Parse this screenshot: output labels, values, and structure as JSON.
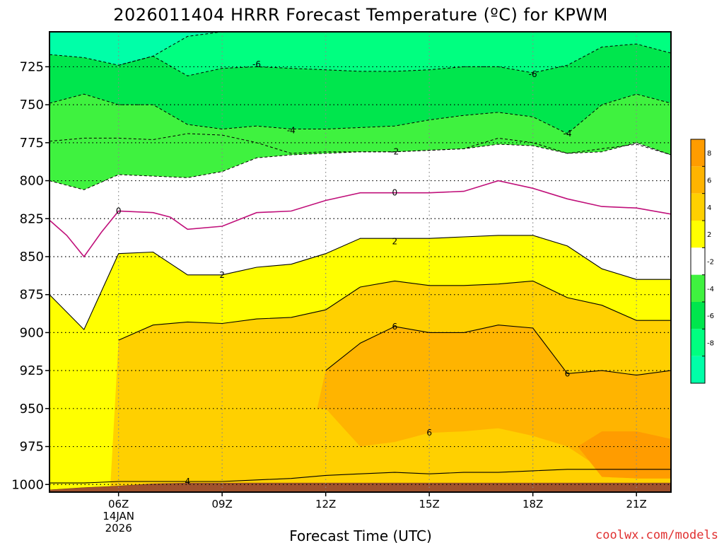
{
  "chart_data": {
    "type": "heatmap",
    "title": "2026011404 HRRR Forecast Temperature (ºC) for KPWM",
    "xlabel": "Forecast Time (UTC)",
    "ylabel": "",
    "credit": "coolwx.com/models",
    "x_hours_utc": [
      4,
      5,
      6,
      7,
      8,
      9,
      10,
      11,
      12,
      13,
      14,
      15,
      16,
      17,
      18,
      19,
      20,
      21,
      22
    ],
    "xlim": [
      4,
      22
    ],
    "xticks": [
      {
        "x": 6,
        "lines": [
          "06Z",
          "14JAN",
          "2026"
        ]
      },
      {
        "x": 9,
        "lines": [
          "09Z"
        ]
      },
      {
        "x": 12,
        "lines": [
          "12Z"
        ]
      },
      {
        "x": 15,
        "lines": [
          "15Z"
        ]
      },
      {
        "x": 18,
        "lines": [
          "18Z"
        ]
      },
      {
        "x": 21,
        "lines": [
          "21Z"
        ]
      }
    ],
    "ylim": [
      1005,
      702
    ],
    "yticks": [
      725,
      750,
      775,
      800,
      825,
      850,
      875,
      900,
      925,
      950,
      975,
      1000
    ],
    "ground_pressure_hpa": [
      1003.5,
      1002,
      1001,
      999.5,
      999,
      999,
      999,
      999,
      999,
      999,
      999,
      999,
      999,
      999,
      999,
      999,
      999,
      999,
      999
    ],
    "colorbar": {
      "ticks": [
        8,
        6,
        4,
        2,
        -2,
        -4,
        -6,
        -8
      ],
      "bins": [
        {
          "range": [
            8,
            10
          ],
          "color": "#ff9c00"
        },
        {
          "range": [
            6,
            8
          ],
          "color": "#ffb400"
        },
        {
          "range": [
            4,
            6
          ],
          "color": "#ffd000"
        },
        {
          "range": [
            2,
            4
          ],
          "color": "#ffff00"
        },
        {
          "range": [
            -2,
            2
          ],
          "color": "#ffffff"
        },
        {
          "range": [
            -4,
            -2
          ],
          "color": "#3ff23f"
        },
        {
          "range": [
            -6,
            -4
          ],
          "color": "#00e64d"
        },
        {
          "range": [
            -8,
            -6
          ],
          "color": "#00ff80"
        },
        {
          "range": [
            -10,
            -8
          ],
          "color": "#00ffa8"
        }
      ]
    },
    "contours": [
      {
        "level": -6,
        "label": "-6",
        "style": "dashed",
        "label_points": [
          [
            10,
            723.5
          ],
          [
            18,
            730
          ]
        ],
        "x": [
          4,
          5,
          6,
          7,
          8,
          9,
          10,
          11,
          12,
          13,
          14,
          15,
          16,
          17,
          18,
          19,
          20,
          21,
          22
        ],
        "p": [
          717,
          719,
          724,
          718,
          705,
          702,
          702,
          702,
          702,
          702,
          702,
          702,
          702,
          702,
          702,
          702,
          702,
          702,
          702
        ]
      },
      {
        "level": -6,
        "label": "",
        "style": "dashed",
        "label_points": [],
        "x": [
          6,
          7,
          8,
          9,
          10,
          11,
          12,
          13,
          14,
          15,
          16,
          17,
          18,
          19,
          20,
          21,
          22
        ],
        "p": [
          724,
          718,
          731,
          726,
          725,
          726,
          727,
          728,
          728,
          727,
          725,
          725,
          729,
          724,
          712,
          710,
          716
        ]
      },
      {
        "level": -4,
        "label": "-4",
        "style": "dashed",
        "label_points": [
          [
            11,
            767
          ],
          [
            19,
            769
          ]
        ],
        "x": [
          4,
          5,
          6,
          7,
          8,
          9,
          10,
          11,
          12,
          13,
          14,
          15,
          16,
          17,
          18,
          19,
          20,
          21,
          22
        ],
        "p": [
          749,
          743,
          750,
          750,
          763,
          766,
          764,
          766,
          766,
          765,
          764,
          760,
          757,
          755,
          758,
          769,
          750,
          743,
          749
        ]
      },
      {
        "level": -2,
        "label": "-2",
        "style": "dashed",
        "label_points": [
          [
            14,
            781
          ]
        ],
        "x": [
          4,
          5,
          6,
          7,
          8,
          9,
          10,
          11,
          12,
          13,
          14,
          15,
          16,
          17,
          18,
          19,
          20,
          21,
          22
        ],
        "p": [
          774,
          772,
          772,
          773,
          769,
          770,
          775,
          782,
          781,
          781,
          781,
          780,
          779,
          772,
          775,
          782,
          779,
          776,
          783
        ]
      },
      {
        "level": -2,
        "label": "",
        "style": "dashed",
        "label_points": [],
        "x": [
          4,
          5,
          6,
          7,
          8,
          9,
          10,
          11,
          12,
          13,
          14,
          15,
          16,
          17,
          18,
          19,
          20,
          21,
          22
        ],
        "p": [
          800,
          806,
          796,
          797,
          798,
          794,
          785,
          783,
          782,
          781,
          781,
          780,
          779,
          776,
          777,
          782,
          781,
          775,
          783
        ]
      },
      {
        "level": 0,
        "label": "0",
        "style": "magenta",
        "label_points": [
          [
            6,
            820
          ],
          [
            14,
            808
          ]
        ],
        "x": [
          4,
          4.5,
          5,
          5.5,
          6,
          7,
          7.5,
          8,
          9,
          10,
          11,
          12,
          13,
          14,
          15,
          16,
          17,
          18,
          19,
          20,
          21,
          22
        ],
        "p": [
          826,
          836,
          850,
          834,
          820,
          821,
          824,
          832,
          830,
          821,
          820,
          813,
          808,
          808,
          808,
          807,
          800,
          805,
          812,
          817,
          818,
          822
        ]
      },
      {
        "level": 2,
        "label": "2",
        "style": "solid",
        "label_points": [
          [
            9,
            862
          ],
          [
            14,
            840
          ]
        ],
        "x": [
          4,
          5,
          6,
          7,
          8,
          9,
          10,
          11,
          12,
          13,
          14,
          15,
          16,
          17,
          18,
          19,
          20,
          21,
          22
        ],
        "p": [
          875,
          898,
          848,
          847,
          862,
          862,
          857,
          855,
          848,
          838,
          838,
          838,
          837,
          836,
          836,
          843,
          858,
          865,
          865
        ]
      },
      {
        "level": 4,
        "label": "4",
        "style": "solid",
        "label_points": [
          [
            8,
            998
          ]
        ],
        "x": [
          4,
          5,
          6,
          7,
          8,
          9,
          10,
          11,
          12,
          13,
          14,
          15,
          16,
          17,
          18,
          19,
          20,
          21,
          22
        ],
        "p": [
          999,
          999,
          998,
          998,
          998,
          998,
          997,
          996,
          994,
          993,
          992,
          993,
          992,
          992,
          991,
          990,
          990,
          990,
          990
        ]
      },
      {
        "level": 4,
        "label": "",
        "style": "solid",
        "label_points": [],
        "x": [
          6,
          7,
          8,
          9,
          10,
          11,
          12,
          13,
          14,
          15,
          16,
          17,
          18,
          19,
          20,
          21,
          22
        ],
        "p": [
          905,
          895,
          893,
          894,
          891,
          890,
          885,
          870,
          866,
          869,
          869,
          868,
          866,
          877,
          882,
          892,
          892
        ]
      },
      {
        "level": 6,
        "label": "6",
        "style": "solid",
        "label_points": [
          [
            14,
            896
          ],
          [
            19,
            927
          ],
          [
            15,
            966
          ]
        ],
        "x": [
          12,
          13,
          14,
          15,
          16,
          17,
          18,
          19,
          20,
          21,
          22
        ],
        "p": [
          925,
          907,
          896,
          900,
          900,
          895,
          897,
          927,
          925,
          928,
          925
        ]
      }
    ]
  }
}
